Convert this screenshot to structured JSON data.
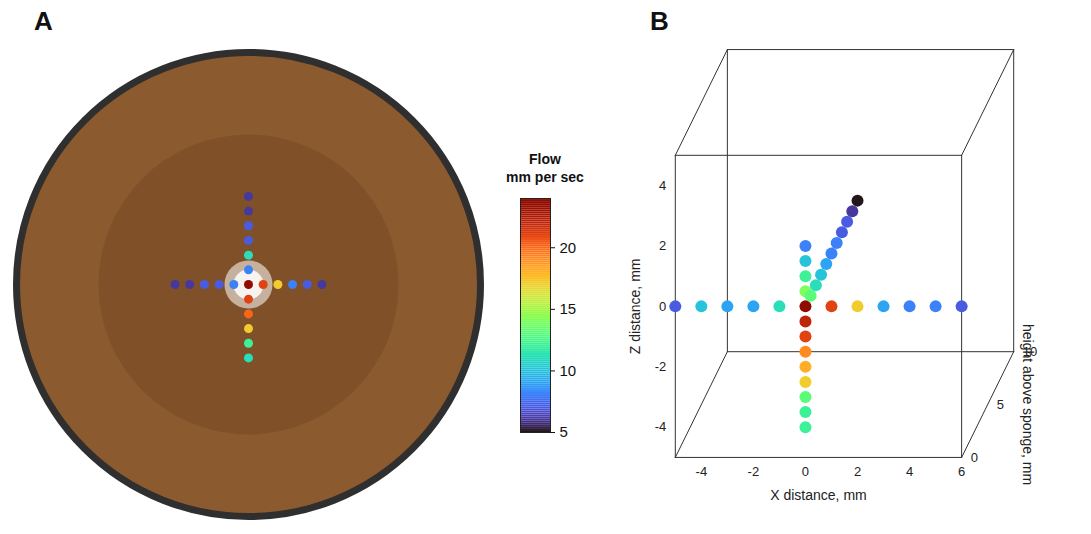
{
  "chart_data": [
    {
      "panel": "A",
      "type": "scatter",
      "tick_labels": false,
      "xlim": [
        -8,
        8
      ],
      "ylim": [
        -8,
        8
      ],
      "x": [
        -2.5,
        -2,
        -1.5,
        -1,
        -0.5,
        0,
        0.5,
        1,
        1.5,
        2,
        2.5,
        0,
        0,
        0,
        0,
        0,
        0,
        0,
        0,
        0,
        0,
        0
      ],
      "y": [
        0,
        0,
        0,
        0,
        0,
        0,
        0,
        0,
        0,
        0,
        0,
        3,
        2.5,
        2,
        1.5,
        1,
        0.5,
        -0.5,
        -1,
        -1.5,
        -2,
        -2.5
      ],
      "flow": [
        6,
        6,
        7,
        7,
        8,
        24,
        21,
        17,
        8,
        7,
        6,
        6,
        6,
        7,
        7,
        11,
        8,
        21,
        20,
        17,
        12,
        11
      ],
      "color_bar": {
        "title": [
          "Flow",
          "mm per sec"
        ],
        "range": [
          5,
          24
        ],
        "ticks": [
          5,
          10,
          15,
          20
        ]
      }
    },
    {
      "panel": "B",
      "type": "scatter3d",
      "x_label": "X distance, mm",
      "z_label": "Z distance, mm",
      "height_label": "height above sponge, mm",
      "xlim": [
        -5,
        6
      ],
      "zlim": [
        -5,
        5
      ],
      "hlim": [
        0,
        10
      ],
      "xticks": [
        -4,
        -2,
        0,
        2,
        4,
        6
      ],
      "zticks": [
        -4,
        -2,
        0,
        2,
        4
      ],
      "hticks": [
        0,
        5,
        10
      ],
      "x": [
        -5,
        -4,
        -3,
        -2,
        -1,
        1,
        2,
        3,
        4,
        5,
        6,
        0,
        0,
        0,
        0,
        0,
        0,
        0,
        0,
        0,
        0,
        0,
        0,
        0,
        0,
        0,
        0,
        0,
        0,
        0,
        0,
        0,
        0,
        0
      ],
      "z": [
        0,
        0,
        0,
        0,
        0,
        0,
        0,
        0,
        0,
        0,
        0,
        2,
        1.5,
        1,
        0.5,
        0,
        -0.5,
        -1,
        -1.5,
        -2,
        -2.5,
        -3,
        -3.5,
        -4,
        0,
        0,
        0,
        0,
        0,
        0,
        0,
        0,
        0,
        0
      ],
      "height": [
        0,
        0,
        0,
        0,
        0,
        0,
        0,
        0,
        0,
        0,
        0,
        0,
        0,
        0,
        0,
        0,
        0,
        0,
        0,
        0,
        0,
        0,
        0,
        0,
        1,
        2,
        3,
        4,
        5,
        6,
        7,
        8,
        9,
        10
      ],
      "flow": [
        7,
        10,
        9,
        9,
        11,
        21,
        17,
        9,
        8,
        8,
        7,
        8,
        10,
        12,
        14,
        24,
        22,
        21,
        19,
        18,
        17,
        13,
        12,
        12,
        13,
        11,
        10,
        9,
        8,
        8,
        7,
        7,
        6,
        5
      ]
    }
  ]
}
